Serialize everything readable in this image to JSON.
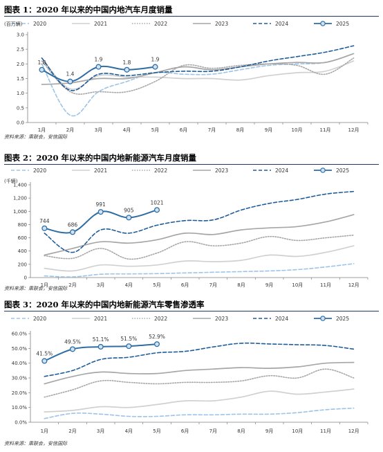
{
  "legend_markers": {
    "2025": "circle"
  },
  "chart_data": [
    {
      "type": "line",
      "title": "图表 1：2020 年以来的中国内地汽车月度销量",
      "unit": "(百万辆)",
      "source": "资料来源：乘联会，安信国际",
      "categories": [
        "1月",
        "2月",
        "3月",
        "4月",
        "5月",
        "6月",
        "7月",
        "8月",
        "9月",
        "10月",
        "11月",
        "12月"
      ],
      "ylim": [
        0,
        3.0
      ],
      "yticks": [
        "0.0",
        "0.5",
        "1.0",
        "1.5",
        "2.0",
        "2.5",
        "3.0"
      ],
      "legend_position": "top",
      "series": [
        {
          "name": "2020",
          "color": "#9dc3e6",
          "style": "dash",
          "values": [
            2.0,
            0.25,
            1.05,
            1.4,
            1.7,
            1.65,
            1.65,
            1.8,
            1.95,
            2.0,
            2.05,
            2.35
          ]
        },
        {
          "name": "2021",
          "color": "#d0d0d0",
          "style": "solid",
          "values": [
            2.2,
            1.15,
            1.6,
            1.55,
            1.55,
            1.5,
            1.5,
            1.45,
            1.6,
            1.7,
            1.75,
            2.1
          ]
        },
        {
          "name": "2022",
          "color": "#a6a6a6",
          "style": "dot",
          "values": [
            2.1,
            1.05,
            1.05,
            1.05,
            1.4,
            1.95,
            1.85,
            1.95,
            2.0,
            1.95,
            1.65,
            2.2
          ]
        },
        {
          "name": "2023",
          "color": "#a6a6a6",
          "style": "solid",
          "values": [
            1.3,
            1.35,
            1.5,
            1.5,
            1.7,
            1.9,
            1.8,
            1.9,
            2.0,
            2.05,
            2.05,
            2.35
          ]
        },
        {
          "name": "2024",
          "color": "#1f5c99",
          "style": "dash",
          "values": [
            2.2,
            1.1,
            1.65,
            1.6,
            1.7,
            1.75,
            1.75,
            1.9,
            2.1,
            2.25,
            2.4,
            2.62
          ]
        },
        {
          "name": "2025",
          "color": "#2e6da4",
          "style": "solid-marker",
          "values": [
            1.8,
            1.4,
            1.9,
            1.8,
            1.9,
            null,
            null,
            null,
            null,
            null,
            null,
            null
          ],
          "labels": [
            "1.8",
            "1.4",
            "1.9",
            "1.8",
            "1.9"
          ]
        }
      ]
    },
    {
      "type": "line",
      "title": "图表 2：2020 年以来的中国内地新能源汽车月度销量",
      "unit": "(千辆)",
      "source": "资料来源：乘联会，安信国际",
      "categories": [
        "1月",
        "2月",
        "3月",
        "4月",
        "5月",
        "6月",
        "7月",
        "8月",
        "9月",
        "10月",
        "11月",
        "12月"
      ],
      "ylim": [
        0,
        1400
      ],
      "yticks": [
        "0",
        "200",
        "400",
        "600",
        "800",
        "1,000",
        "1,200",
        "1,400"
      ],
      "legend_position": "top",
      "series": [
        {
          "name": "2020",
          "color": "#9dc3e6",
          "style": "dash",
          "values": [
            25,
            10,
            50,
            55,
            60,
            70,
            80,
            90,
            100,
            120,
            160,
            210
          ]
        },
        {
          "name": "2021",
          "color": "#d0d0d0",
          "style": "solid",
          "values": [
            140,
            100,
            190,
            170,
            190,
            250,
            240,
            260,
            340,
            320,
            380,
            480
          ]
        },
        {
          "name": "2022",
          "color": "#a6a6a6",
          "style": "dot",
          "values": [
            330,
            290,
            440,
            280,
            370,
            540,
            480,
            520,
            620,
            560,
            600,
            640
          ]
        },
        {
          "name": "2023",
          "color": "#a6a6a6",
          "style": "solid",
          "values": [
            340,
            440,
            540,
            520,
            570,
            670,
            650,
            720,
            750,
            770,
            840,
            950
          ]
        },
        {
          "name": "2024",
          "color": "#1f5c99",
          "style": "dash",
          "values": [
            670,
            380,
            720,
            670,
            790,
            860,
            870,
            1020,
            1120,
            1180,
            1260,
            1300
          ]
        },
        {
          "name": "2025",
          "color": "#2e6da4",
          "style": "solid-marker",
          "values": [
            744,
            686,
            991,
            905,
            1021,
            null,
            null,
            null,
            null,
            null,
            null,
            null
          ],
          "labels": [
            "744",
            "686",
            "991",
            "905",
            "1021"
          ]
        }
      ]
    },
    {
      "type": "line",
      "title": "图表 3：2020 年以来的中国内地新能源汽车零售渗透率",
      "unit": "",
      "source": "资料来源：乘联会，安信国际",
      "categories": [
        "1月",
        "2月",
        "3月",
        "4月",
        "5月",
        "6月",
        "7月",
        "8月",
        "9月",
        "10月",
        "11月",
        "12月"
      ],
      "ylim": [
        0,
        60
      ],
      "yticks": [
        "0.0%",
        "10.0%",
        "20.0%",
        "30.0%",
        "40.0%",
        "50.0%",
        "60.0%"
      ],
      "legend_position": "top",
      "series": [
        {
          "name": "2020",
          "color": "#9dc3e6",
          "style": "dash",
          "values": [
            2.5,
            6,
            5.5,
            4,
            4,
            5,
            5,
            5.5,
            5.5,
            6.5,
            8.5,
            9.5
          ]
        },
        {
          "name": "2021",
          "color": "#d0d0d0",
          "style": "solid",
          "values": [
            7,
            8,
            10.5,
            10,
            12,
            14.5,
            14.5,
            17,
            21,
            19,
            20.5,
            22.5
          ]
        },
        {
          "name": "2022",
          "color": "#a6a6a6",
          "style": "dot",
          "values": [
            17,
            22,
            28,
            27,
            26,
            27,
            27,
            28,
            31.5,
            30,
            36,
            30
          ]
        },
        {
          "name": "2023",
          "color": "#a6a6a6",
          "style": "solid",
          "values": [
            26,
            31,
            34,
            33,
            33,
            35,
            36,
            37,
            36.5,
            37.5,
            40,
            40.5
          ]
        },
        {
          "name": "2024",
          "color": "#1f5c99",
          "style": "dash",
          "values": [
            31,
            35,
            42.5,
            44,
            47,
            48,
            51,
            53.5,
            53,
            52.5,
            52,
            49.5
          ]
        },
        {
          "name": "2025",
          "color": "#2e6da4",
          "style": "solid-marker",
          "values": [
            41.5,
            49.5,
            51.1,
            51.5,
            52.9,
            null,
            null,
            null,
            null,
            null,
            null,
            null
          ],
          "labels": [
            "41.5%",
            "49.5%",
            "51.1%",
            "51.5%",
            "52.9%"
          ]
        }
      ]
    }
  ]
}
